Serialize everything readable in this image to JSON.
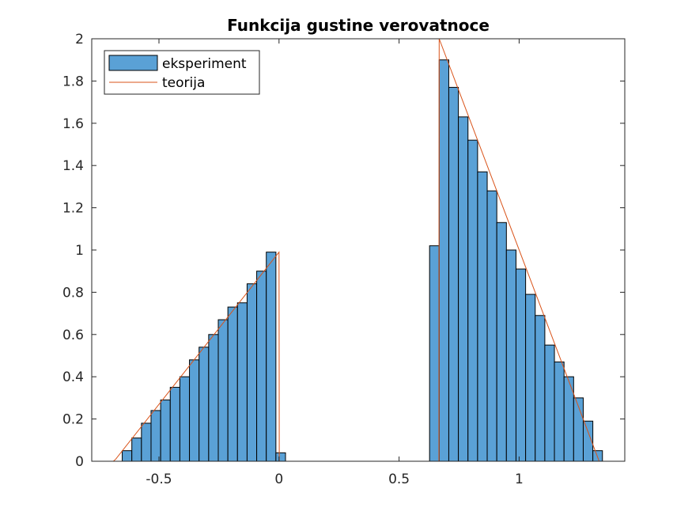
{
  "chart_data": {
    "type": "bar",
    "title": "Funkcija gustine verovatnoce",
    "xlabel": "",
    "ylabel": "",
    "xlim": [
      -0.78,
      1.44
    ],
    "ylim": [
      0,
      2
    ],
    "xticks": [
      -0.5,
      0,
      0.5,
      1
    ],
    "xtick_labels": [
      "-0.5",
      "0",
      "0.5",
      "1"
    ],
    "yticks": [
      0,
      0.2,
      0.4,
      0.6,
      0.8,
      1,
      1.2,
      1.4,
      1.6,
      1.8,
      2
    ],
    "ytick_labels": [
      "0",
      "0.2",
      "0.4",
      "0.6",
      "0.8",
      "1",
      "1.2",
      "1.4",
      "1.6",
      "1.8",
      "2"
    ],
    "grid": false,
    "legend_position": "top-left",
    "histogram": {
      "name": "eksperiment",
      "color": "#5aa1d6",
      "edge_color": "#000000",
      "bin_width": 0.04,
      "bin_left_edges": [
        -0.653,
        -0.613,
        -0.573,
        -0.533,
        -0.493,
        -0.453,
        -0.413,
        -0.373,
        -0.333,
        -0.293,
        -0.253,
        -0.213,
        -0.173,
        -0.133,
        -0.093,
        -0.053,
        -0.013,
        0.027,
        0.067,
        0.107,
        0.147,
        0.187,
        0.227,
        0.267,
        0.307,
        0.347,
        0.387,
        0.427,
        0.467,
        0.507,
        0.547,
        0.587,
        0.627,
        0.667,
        0.707,
        0.747,
        0.787,
        0.827,
        0.867,
        0.907,
        0.947,
        0.987,
        1.027,
        1.067,
        1.107,
        1.147,
        1.187,
        1.227,
        1.267,
        1.307
      ],
      "values": [
        0.05,
        0.11,
        0.18,
        0.24,
        0.29,
        0.35,
        0.4,
        0.48,
        0.54,
        0.6,
        0.67,
        0.73,
        0.75,
        0.84,
        0.9,
        0.99,
        0.04,
        0,
        0,
        0,
        0,
        0,
        0,
        0,
        0,
        0,
        0,
        0,
        0,
        0,
        0,
        0,
        1.02,
        1.9,
        1.77,
        1.63,
        1.52,
        1.37,
        1.28,
        1.13,
        1.0,
        0.91,
        0.79,
        0.69,
        0.55,
        0.47,
        0.4,
        0.3,
        0.19,
        0.05
      ]
    },
    "series": [
      {
        "name": "teorija",
        "type": "line",
        "color": "#d95319",
        "x": [
          -0.69,
          -0.68,
          0,
          0.001,
          0.666,
          0.667,
          1.33,
          1.333
        ],
        "y": [
          0,
          0.01,
          0.99,
          0,
          0,
          2.0,
          0.01,
          0
        ]
      }
    ],
    "legend": [
      "eksperiment",
      "teorija"
    ]
  }
}
